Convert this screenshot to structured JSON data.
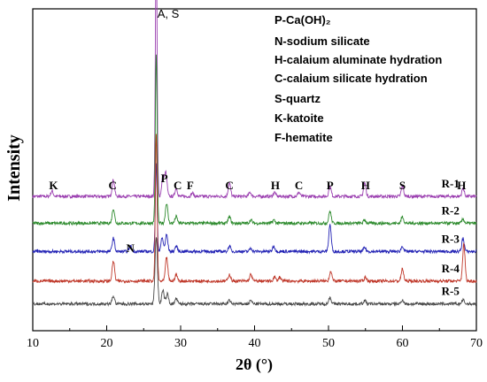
{
  "chart_data": {
    "type": "line",
    "title": "",
    "xlabel": "2θ (°)",
    "ylabel": "Intensity",
    "xlim": [
      10,
      70
    ],
    "xticks": [
      10,
      20,
      30,
      40,
      50,
      60,
      70
    ],
    "grid": false,
    "legend_position": "top-right",
    "legend": [
      "P-Ca(OH)₂",
      "N-sodium silicate",
      "H-calaium aluminate hydration",
      "C-calaium silicate hydration",
      "S-quartz",
      "K-katoite",
      "F-hematite"
    ],
    "top_annotation": "A, S",
    "series": [
      {
        "name": "R-1",
        "color": "#9b3fb0",
        "baseline": 0.92,
        "peaks": [
          [
            12.6,
            0.08
          ],
          [
            20.9,
            0.25
          ],
          [
            26.7,
            3.7
          ],
          [
            27.6,
            0.3
          ],
          [
            28.0,
            0.35
          ],
          [
            29.4,
            0.12
          ],
          [
            31.6,
            0.05
          ],
          [
            36.6,
            0.2
          ],
          [
            39.4,
            0.06
          ],
          [
            42.7,
            0.06
          ],
          [
            46.0,
            0.06
          ],
          [
            50.2,
            0.15
          ],
          [
            54.9,
            0.2
          ],
          [
            60.0,
            0.15
          ],
          [
            68.2,
            0.12
          ]
        ]
      },
      {
        "name": "R-2",
        "color": "#2e8b2e",
        "baseline": 0.52,
        "peaks": [
          [
            20.9,
            0.22
          ],
          [
            26.7,
            2.5
          ],
          [
            28.1,
            0.3
          ],
          [
            29.4,
            0.1
          ],
          [
            36.6,
            0.1
          ],
          [
            39.5,
            0.05
          ],
          [
            42.6,
            0.05
          ],
          [
            50.2,
            0.18
          ],
          [
            54.9,
            0.05
          ],
          [
            60.0,
            0.1
          ],
          [
            68.2,
            0.06
          ]
        ]
      },
      {
        "name": "R-3",
        "color": "#2323b5",
        "baseline": 0.1,
        "peaks": [
          [
            20.9,
            0.2
          ],
          [
            23.2,
            0.08
          ],
          [
            26.7,
            1.3
          ],
          [
            27.5,
            0.2
          ],
          [
            28.1,
            0.25
          ],
          [
            29.4,
            0.08
          ],
          [
            36.6,
            0.08
          ],
          [
            39.5,
            0.05
          ],
          [
            42.6,
            0.08
          ],
          [
            50.2,
            0.4
          ],
          [
            54.9,
            0.06
          ],
          [
            60.0,
            0.08
          ],
          [
            68.2,
            0.2
          ]
        ]
      },
      {
        "name": "R-4",
        "color": "#c0392b",
        "baseline": -0.34,
        "peaks": [
          [
            20.9,
            0.3
          ],
          [
            26.7,
            2.2
          ],
          [
            28.1,
            0.35
          ],
          [
            29.4,
            0.1
          ],
          [
            36.6,
            0.1
          ],
          [
            39.5,
            0.1
          ],
          [
            42.7,
            0.06
          ],
          [
            43.4,
            0.06
          ],
          [
            50.3,
            0.15
          ],
          [
            55.0,
            0.06
          ],
          [
            60.0,
            0.18
          ],
          [
            68.3,
            0.55
          ]
        ]
      },
      {
        "name": "R-5",
        "color": "#4a4a4a",
        "baseline": -0.68,
        "peaks": [
          [
            20.9,
            0.12
          ],
          [
            26.7,
            1.0
          ],
          [
            27.6,
            0.2
          ],
          [
            28.2,
            0.15
          ],
          [
            29.4,
            0.08
          ],
          [
            36.6,
            0.05
          ],
          [
            39.5,
            0.05
          ],
          [
            50.2,
            0.1
          ],
          [
            54.9,
            0.05
          ],
          [
            60.0,
            0.06
          ],
          [
            68.2,
            0.06
          ]
        ]
      }
    ],
    "peak_labels": [
      {
        "text": "K",
        "x": 12.8
      },
      {
        "text": "C",
        "x": 20.8
      },
      {
        "text": "P",
        "x": 27.8
      },
      {
        "text": "C",
        "x": 29.6
      },
      {
        "text": "F",
        "x": 31.3
      },
      {
        "text": "C",
        "x": 36.6
      },
      {
        "text": "H",
        "x": 42.8
      },
      {
        "text": "C",
        "x": 46.0
      },
      {
        "text": "P",
        "x": 50.2
      },
      {
        "text": "H",
        "x": 55.0
      },
      {
        "text": "S",
        "x": 60.0
      },
      {
        "text": "H",
        "x": 68.0
      },
      {
        "text": "N",
        "x": 23.2
      }
    ]
  }
}
